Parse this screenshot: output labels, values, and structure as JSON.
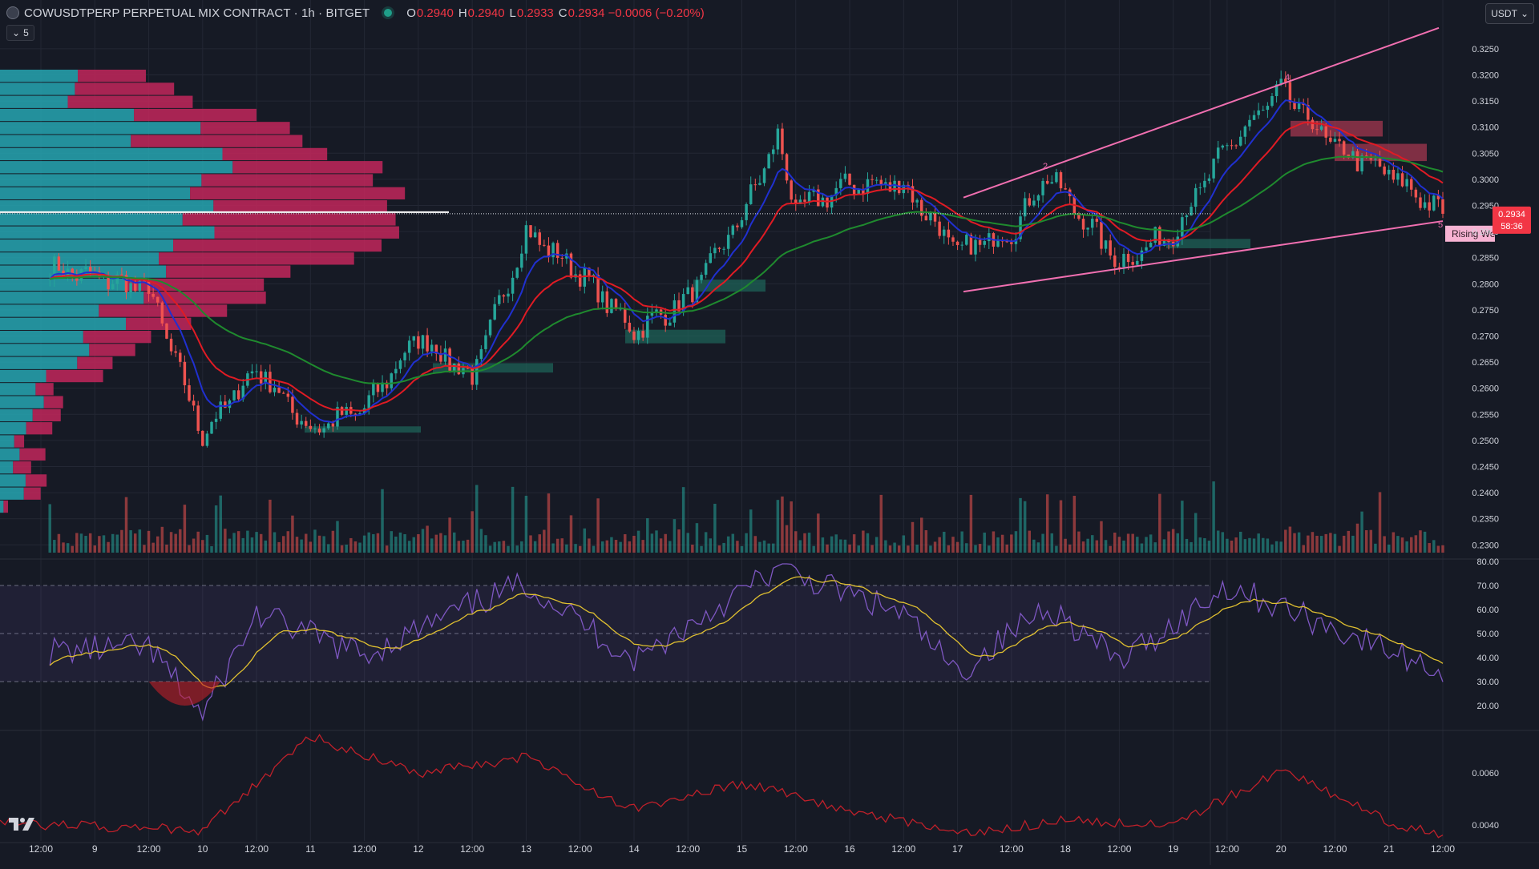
{
  "header": {
    "symbol": "COWUSDTPERP PERPETUAL MIX CONTRACT · 1h · BITGET",
    "o_label": "O",
    "o_value": "0.2940",
    "h_label": "H",
    "h_value": "0.2940",
    "l_label": "L",
    "l_value": "0.2933",
    "c_label": "C",
    "c_value": "0.2934 −0.0006 (−0.20%)",
    "indicator_count": "5"
  },
  "currency_button": "USDT",
  "price_badge": {
    "value": "0.2934",
    "countdown": "58:36"
  },
  "pattern_label": "Rising We",
  "colors": {
    "up": "#26a69a",
    "down": "#ef5350",
    "ema_fast": "#2030d0",
    "ema_mid": "#e01b24",
    "ema_slow": "#1f8a2e",
    "rsi": "#7e57c2",
    "rsi_ma": "#e0c030",
    "lower": "#c0202a",
    "vp_up": "#26a6b2",
    "vp_down": "#c2275c",
    "wedge": "#f06fb0"
  },
  "chart_data": [
    {
      "type": "candlestick",
      "title": "COWUSDTPERP PERPETUAL MIX CONTRACT · 1h · BITGET",
      "y_ticks": [
        "0.3250",
        "0.3200",
        "0.3150",
        "0.3100",
        "0.3050",
        "0.3000",
        "0.2950",
        "0.2900",
        "0.2850",
        "0.2800",
        "0.2750",
        "0.2700",
        "0.2650",
        "0.2600",
        "0.2550",
        "0.2500",
        "0.2450",
        "0.2400",
        "0.2350",
        "0.2300"
      ],
      "ylim": [
        0.2295,
        0.3268
      ],
      "x_ticks": [
        "12:00",
        "9",
        "12:00",
        "10",
        "12:00",
        "11",
        "12:00",
        "12",
        "12:00",
        "13",
        "12:00",
        "14",
        "12:00",
        "15",
        "12:00",
        "16",
        "12:00",
        "17",
        "12:00",
        "18",
        "12:00",
        "19",
        "12:00",
        "20",
        "12:00",
        "21",
        "12:00"
      ],
      "key_points": [
        {
          "x": "Jun 8 14:00",
          "y": 0.283
        },
        {
          "x": "Jun 9 12:00",
          "y": 0.279
        },
        {
          "x": "Jun 10 00:00",
          "y": 0.251
        },
        {
          "x": "Jun 10 12:00",
          "y": 0.264
        },
        {
          "x": "Jun 11 00:00",
          "y": 0.252
        },
        {
          "x": "Jun 11 12:00",
          "y": 0.256
        },
        {
          "x": "Jun 12 00:00",
          "y": 0.27
        },
        {
          "x": "Jun 12 12:00",
          "y": 0.262
        },
        {
          "x": "Jun 13 00:00",
          "y": 0.29
        },
        {
          "x": "Jun 13 12:00",
          "y": 0.282
        },
        {
          "x": "Jun 14 00:00",
          "y": 0.271
        },
        {
          "x": "Jun 14 12:00",
          "y": 0.277
        },
        {
          "x": "Jun 15 00:00",
          "y": 0.293
        },
        {
          "x": "Jun 15 08:00",
          "y": 0.308
        },
        {
          "x": "Jun 15 12:00",
          "y": 0.294
        },
        {
          "x": "Jun 16 00:00",
          "y": 0.299
        },
        {
          "x": "Jun 16 12:00",
          "y": 0.299
        },
        {
          "x": "Jun 17 00:00",
          "y": 0.286
        },
        {
          "x": "Jun 17 12:00",
          "y": 0.29
        },
        {
          "x": "Jun 17 20:00",
          "y": 0.301
        },
        {
          "x": "Jun 18 12:00",
          "y": 0.284
        },
        {
          "x": "Jun 19 00:00",
          "y": 0.29
        },
        {
          "x": "Jun 19 12:00",
          "y": 0.306
        },
        {
          "x": "Jun 20 00:00",
          "y": 0.317
        },
        {
          "x": "Jun 20 12:00",
          "y": 0.306
        },
        {
          "x": "Jun 21 00:00",
          "y": 0.301
        },
        {
          "x": "Jun 21 12:00",
          "y": 0.2934
        }
      ],
      "wedge": {
        "label": "Rising We",
        "points": [
          "2",
          "4",
          "5"
        ]
      },
      "last_price": 0.2934
    },
    {
      "type": "line",
      "name": "RSI",
      "y_ticks": [
        "80.00",
        "70.00",
        "60.00",
        "50.00",
        "40.00",
        "30.00",
        "20.00"
      ],
      "ylim": [
        15,
        82
      ],
      "levels": [
        70,
        50,
        30
      ],
      "key_points": [
        {
          "x": "Jun 8",
          "y": 42
        },
        {
          "x": "Jun 9 12:00",
          "y": 44
        },
        {
          "x": "Jun 10 00:00",
          "y": 16
        },
        {
          "x": "Jun 10 12:00",
          "y": 58
        },
        {
          "x": "Jun 11 12:00",
          "y": 41
        },
        {
          "x": "Jun 12 12:00",
          "y": 62
        },
        {
          "x": "Jun 13 00:00",
          "y": 71
        },
        {
          "x": "Jun 14 00:00",
          "y": 39
        },
        {
          "x": "Jun 15 08:00",
          "y": 77
        },
        {
          "x": "Jun 16 12:00",
          "y": 58
        },
        {
          "x": "Jun 17 00:00",
          "y": 33
        },
        {
          "x": "Jun 17 20:00",
          "y": 62
        },
        {
          "x": "Jun 18 12:00",
          "y": 38
        },
        {
          "x": "Jun 19 12:00",
          "y": 70
        },
        {
          "x": "Jun 20 12:00",
          "y": 52
        },
        {
          "x": "Jun 21 12:00",
          "y": 34
        }
      ]
    },
    {
      "type": "line",
      "name": "lower",
      "y_ticks": [
        "0.0060",
        "0.0040"
      ],
      "key_points": [
        {
          "x": "Jun 8",
          "y": 0.0041
        },
        {
          "x": "Jun 10 00:00",
          "y": 0.0038
        },
        {
          "x": "Jun 11 00:00",
          "y": 0.0074
        },
        {
          "x": "Jun 12 00:00",
          "y": 0.006
        },
        {
          "x": "Jun 13 00:00",
          "y": 0.0066
        },
        {
          "x": "Jun 14 00:00",
          "y": 0.0046
        },
        {
          "x": "Jun 15 00:00",
          "y": 0.0056
        },
        {
          "x": "Jun 16 00:00",
          "y": 0.0046
        },
        {
          "x": "Jun 17 00:00",
          "y": 0.0036
        },
        {
          "x": "Jun 18 00:00",
          "y": 0.0042
        },
        {
          "x": "Jun 19 00:00",
          "y": 0.004
        },
        {
          "x": "Jun 20 00:00",
          "y": 0.0061
        },
        {
          "x": "Jun 21 00:00",
          "y": 0.0041
        },
        {
          "x": "Jun 21 12:00",
          "y": 0.0036
        }
      ]
    }
  ]
}
